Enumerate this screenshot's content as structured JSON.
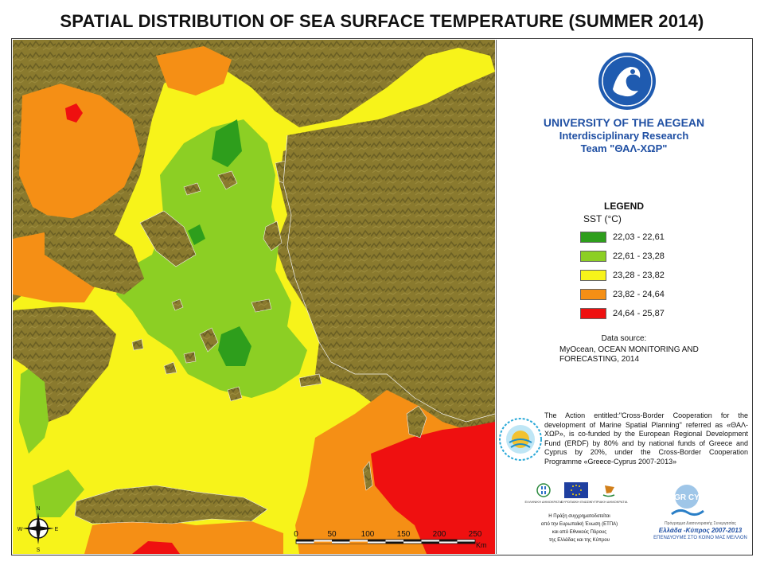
{
  "title": "SPATIAL DISTRIBUTION OF SEA SURFACE TEMPERATURE (SUMMER 2014)",
  "institution": {
    "name": "UNIVERSITY OF THE AEGEAN",
    "department": "Interdisciplinary Research",
    "team": "Team \"ΘΑΛ-ΧΩΡ\"",
    "logo_icon": "university-seal-icon"
  },
  "legend": {
    "title": "LEGEND",
    "unit_label": "SST (°C)",
    "classes": [
      {
        "range": "22,03 - 22,61",
        "color": "#2e9e1c"
      },
      {
        "range": "22,61 - 23,28",
        "color": "#8ccf24"
      },
      {
        "range": "23,28 - 23,82",
        "color": "#f7f31a"
      },
      {
        "range": "23,82 - 24,64",
        "color": "#f58f15"
      },
      {
        "range": "24,64 - 25,87",
        "color": "#ef1010"
      }
    ]
  },
  "data_source": {
    "label": "Data source:",
    "text": "MyOcean, OCEAN MONITORING AND FORECASTING, 2014"
  },
  "action_statement": "The Action entitled:\"Cross-Border Cooperation for the development of Marine Spatial Planning\" referred as «ΘΑΛ-ΧΩΡ», is co-funded by the European Regional Development Fund (ERDF) by 80% and by national funds of Greece and Cyprus by 20%, under the Cross-Border Cooperation Programme «Greece-Cyprus 2007-2013»",
  "funding": {
    "flags": [
      {
        "caption": "ΕΛΛΗΝΙΚΗ ΔΗΜΟΚΡΑΤΙΑ",
        "icon": "greek-emblem-icon"
      },
      {
        "caption": "ΕΥΡΩΠΑΪΚΗ ΕΝΩΣΗ",
        "icon": "eu-flag-icon"
      },
      {
        "caption": "ΚΥΠΡΙΑΚΗ ΔΗΜΟΚΡΑΤΙΑ",
        "icon": "cyprus-emblem-icon"
      }
    ],
    "note_lines": [
      "Η Πράξη συγχρηματοδοτείται",
      "από την Ευρωπαϊκή Ένωση (ΕΤΠΑ)",
      "και από Εθνικούς Πόρους",
      "της Ελλάδας και της Κύπρου"
    ],
    "programme_small": "Πρόγραμμα Διασυνοριακής Συνεργασίας",
    "programme_name": "Ελλάδα -Κύπρος 2007-2013",
    "programme_motto": "ΕΠΕΝΔΥΟΥΜΕ ΣΤΟ ΚΟΙΝΟ ΜΑΣ ΜΕΛΛΟΝ",
    "programme_logo": "GR CY"
  },
  "map": {
    "compass": {
      "n": "N",
      "s": "S",
      "e": "E",
      "w": "W"
    },
    "scale": {
      "ticks": [
        "0",
        "50",
        "100",
        "150",
        "200",
        "250"
      ],
      "unit": "Km"
    },
    "land_color": "#8a7a2e",
    "land_shadow_color": "#5e5520"
  }
}
